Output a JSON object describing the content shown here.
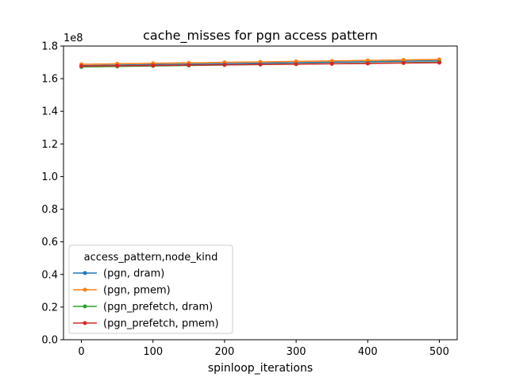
{
  "chart_data": {
    "type": "line",
    "title": "cache_misses for pgn access pattern",
    "xlabel": "spinloop_iterations",
    "ylabel": "",
    "y_scale_label": "1e8",
    "xlim": [
      -25,
      525
    ],
    "ylim": [
      0.0,
      1.8
    ],
    "x_ticks": [
      0,
      100,
      200,
      300,
      400,
      500
    ],
    "y_ticks": [
      0.0,
      0.2,
      0.4,
      0.6,
      0.8,
      1.0,
      1.2,
      1.4,
      1.6,
      1.8
    ],
    "y_tick_labels": [
      "0.0",
      "0.2",
      "0.4",
      "0.6",
      "0.8",
      "1.0",
      "1.2",
      "1.4",
      "1.6",
      "1.8"
    ],
    "x_tick_labels": [
      "0",
      "100",
      "200",
      "300",
      "400",
      "500"
    ],
    "grid": false,
    "legend_title": "access_pattern,node_kind",
    "legend_position": "lower-left",
    "x": [
      0,
      50,
      100,
      150,
      200,
      250,
      300,
      350,
      400,
      450,
      500
    ],
    "series": [
      {
        "name": "(pgn, dram)",
        "color": "#1f77b4",
        "values": [
          1.68,
          1.683,
          1.686,
          1.689,
          1.692,
          1.695,
          1.698,
          1.701,
          1.704,
          1.707,
          1.71
        ]
      },
      {
        "name": "(pgn, pmem)",
        "color": "#ff7f0e",
        "values": [
          1.688,
          1.691,
          1.694,
          1.697,
          1.7,
          1.703,
          1.706,
          1.709,
          1.712,
          1.715,
          1.718
        ]
      },
      {
        "name": "(pgn_prefetch, dram)",
        "color": "#2ca02c",
        "values": [
          1.672,
          1.675,
          1.678,
          1.681,
          1.684,
          1.687,
          1.69,
          1.692,
          1.695,
          1.698,
          1.701
        ]
      },
      {
        "name": "(pgn_prefetch, pmem)",
        "color": "#d62728",
        "values": [
          1.677,
          1.679,
          1.681,
          1.683,
          1.685,
          1.687,
          1.689,
          1.691,
          1.693,
          1.696,
          1.698
        ]
      }
    ]
  }
}
